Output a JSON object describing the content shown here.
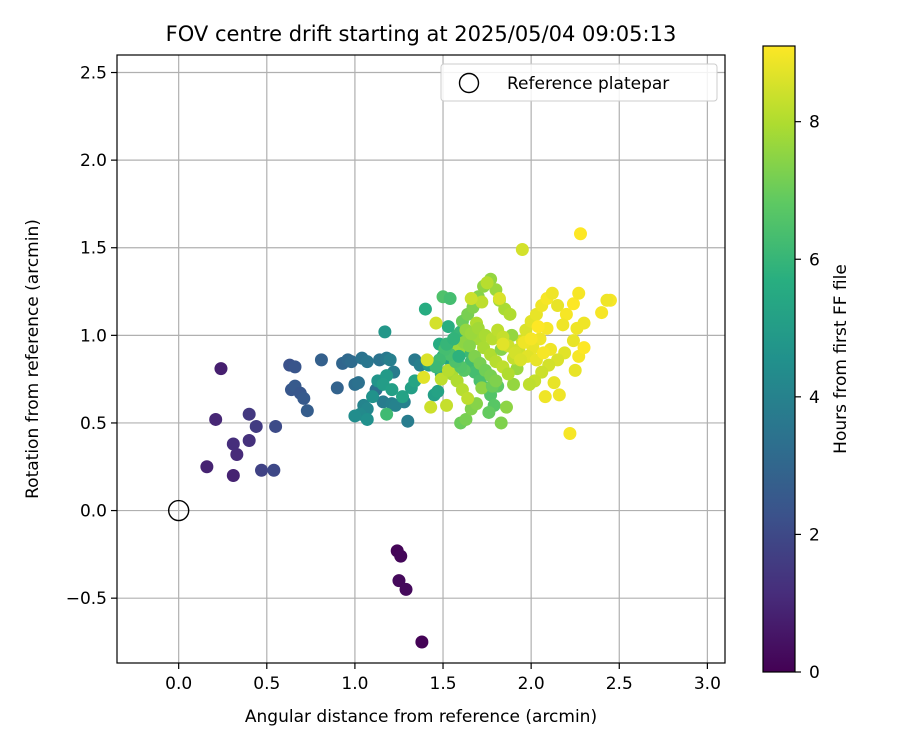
{
  "chart_data": {
    "type": "scatter",
    "title": "FOV centre drift starting at 2025/05/04 09:05:13",
    "xlabel": "Angular distance from reference (arcmin)",
    "ylabel": "Rotation from reference (arcmin)",
    "xlim": [
      -0.35,
      3.1
    ],
    "ylim": [
      -0.87,
      2.6
    ],
    "xticks": [
      {
        "value": 0.0,
        "label": "0.0"
      },
      {
        "value": 0.5,
        "label": "0.5"
      },
      {
        "value": 1.0,
        "label": "1.0"
      },
      {
        "value": 1.5,
        "label": "1.5"
      },
      {
        "value": 2.0,
        "label": "2.0"
      },
      {
        "value": 2.5,
        "label": "2.5"
      },
      {
        "value": 3.0,
        "label": "3.0"
      }
    ],
    "yticks": [
      {
        "value": -0.5,
        "label": "−0.5"
      },
      {
        "value": 0.0,
        "label": "0.0"
      },
      {
        "value": 0.5,
        "label": "0.5"
      },
      {
        "value": 1.0,
        "label": "1.0"
      },
      {
        "value": 1.5,
        "label": "1.5"
      },
      {
        "value": 2.0,
        "label": "2.0"
      },
      {
        "value": 2.5,
        "label": "2.5"
      }
    ],
    "grid": true,
    "legend": {
      "position": "top-right",
      "entries": [
        "Reference platepar"
      ]
    },
    "reference_point": {
      "x": 0.0,
      "y": 0.0,
      "label": "Reference platepar"
    },
    "colorbar": {
      "label": "Hours from first FF file",
      "min": 0,
      "max": 9.1,
      "colormap": "viridis",
      "ticks": [
        {
          "value": 0,
          "label": "0"
        },
        {
          "value": 2,
          "label": "2"
        },
        {
          "value": 4,
          "label": "4"
        },
        {
          "value": 6,
          "label": "6"
        },
        {
          "value": 8,
          "label": "8"
        }
      ]
    },
    "series": [
      {
        "columns": [
          "x",
          "y",
          "hours"
        ],
        "points": [
          [
            1.24,
            -0.23,
            0.1
          ],
          [
            1.26,
            -0.26,
            0.15
          ],
          [
            1.25,
            -0.4,
            0.2
          ],
          [
            1.29,
            -0.45,
            0.25
          ],
          [
            1.38,
            -0.75,
            0.05
          ],
          [
            0.24,
            0.81,
            0.8
          ],
          [
            0.16,
            0.25,
            0.9
          ],
          [
            0.31,
            0.2,
            0.9
          ],
          [
            0.21,
            0.52,
            1.0
          ],
          [
            0.33,
            0.32,
            1.1
          ],
          [
            0.31,
            0.38,
            1.2
          ],
          [
            0.4,
            0.4,
            1.3
          ],
          [
            0.4,
            0.55,
            1.5
          ],
          [
            0.44,
            0.48,
            1.6
          ],
          [
            0.47,
            0.23,
            1.8
          ],
          [
            0.54,
            0.23,
            2.0
          ],
          [
            0.55,
            0.48,
            2.1
          ],
          [
            0.63,
            0.83,
            2.3
          ],
          [
            0.66,
            0.82,
            2.4
          ],
          [
            0.64,
            0.69,
            2.5
          ],
          [
            0.66,
            0.71,
            2.6
          ],
          [
            0.69,
            0.67,
            2.5
          ],
          [
            0.71,
            0.64,
            2.6
          ],
          [
            0.73,
            0.57,
            2.7
          ],
          [
            0.81,
            0.86,
            2.8
          ],
          [
            0.9,
            0.7,
            2.9
          ],
          [
            0.93,
            0.84,
            3.0
          ],
          [
            0.96,
            0.86,
            3.1
          ],
          [
            0.98,
            0.85,
            3.2
          ],
          [
            1.0,
            0.72,
            3.3
          ],
          [
            1.02,
            0.73,
            3.4
          ],
          [
            1.04,
            0.87,
            3.5
          ],
          [
            1.07,
            0.85,
            3.6
          ],
          [
            1.12,
            0.69,
            3.4
          ],
          [
            1.14,
            0.86,
            3.5
          ],
          [
            1.18,
            0.87,
            3.7
          ],
          [
            1.2,
            0.86,
            3.9
          ],
          [
            1.16,
            0.62,
            3.8
          ],
          [
            1.21,
            0.61,
            3.9
          ],
          [
            1.23,
            0.6,
            4.0
          ],
          [
            1.22,
            0.79,
            3.8
          ],
          [
            1.28,
            0.62,
            4.0
          ],
          [
            1.3,
            0.51,
            3.8
          ],
          [
            1.34,
            0.86,
            3.7
          ],
          [
            1.37,
            0.83,
            3.9
          ],
          [
            1.05,
            0.6,
            4.1
          ],
          [
            1.07,
            0.58,
            4.2
          ],
          [
            1.03,
            0.55,
            4.3
          ],
          [
            1.0,
            0.54,
            4.4
          ],
          [
            1.07,
            0.52,
            4.5
          ],
          [
            1.1,
            0.65,
            4.6
          ],
          [
            1.13,
            0.74,
            4.7
          ],
          [
            1.17,
            1.02,
            4.8
          ],
          [
            1.18,
            0.77,
            4.9
          ],
          [
            1.16,
            0.72,
            5.0
          ],
          [
            1.21,
            0.69,
            5.1
          ],
          [
            1.27,
            0.65,
            5.2
          ],
          [
            1.32,
            0.7,
            5.1
          ],
          [
            1.34,
            0.74,
            5.3
          ],
          [
            1.42,
            0.83,
            5.0
          ],
          [
            1.45,
            0.66,
            5.1
          ],
          [
            1.47,
            0.68,
            5.2
          ],
          [
            1.49,
            0.78,
            5.3
          ],
          [
            1.5,
            0.88,
            5.4
          ],
          [
            1.52,
            0.87,
            5.5
          ],
          [
            1.55,
            0.86,
            5.3
          ],
          [
            1.57,
            0.84,
            5.4
          ],
          [
            1.48,
            0.95,
            5.6
          ],
          [
            1.53,
            1.05,
            5.7
          ],
          [
            1.55,
            0.95,
            5.8
          ],
          [
            1.58,
            1.0,
            5.9
          ],
          [
            1.6,
            1.02,
            6.0
          ],
          [
            1.62,
            0.91,
            6.1
          ],
          [
            1.66,
            0.85,
            6.2
          ],
          [
            1.68,
            0.79,
            6.3
          ],
          [
            1.71,
            0.74,
            6.4
          ],
          [
            1.74,
            0.7,
            6.5
          ],
          [
            1.77,
            0.66,
            6.6
          ],
          [
            1.79,
            0.6,
            6.7
          ],
          [
            1.81,
            0.71,
            6.8
          ],
          [
            1.4,
            1.15,
            5.6
          ],
          [
            1.5,
            1.22,
            6.5
          ],
          [
            1.54,
            1.21,
            6.3
          ],
          [
            1.18,
            0.55,
            6.2
          ],
          [
            1.6,
            0.5,
            7.0
          ],
          [
            1.63,
            0.52,
            7.2
          ],
          [
            1.66,
            0.58,
            7.3
          ],
          [
            1.69,
            0.61,
            7.4
          ],
          [
            1.72,
            0.7,
            7.5
          ],
          [
            1.76,
            0.56,
            6.9
          ],
          [
            1.78,
            0.71,
            7.0
          ],
          [
            1.83,
            0.5,
            7.3
          ],
          [
            1.86,
            0.59,
            7.5
          ],
          [
            1.9,
            0.72,
            7.6
          ],
          [
            1.92,
            0.81,
            7.7
          ],
          [
            1.61,
            1.08,
            7.0
          ],
          [
            1.64,
            1.12,
            7.2
          ],
          [
            1.67,
            1.16,
            7.3
          ],
          [
            1.7,
            1.22,
            7.4
          ],
          [
            1.73,
            1.28,
            7.5
          ],
          [
            1.77,
            1.32,
            7.6
          ],
          [
            1.8,
            1.26,
            7.7
          ],
          [
            1.82,
            1.2,
            7.8
          ],
          [
            1.85,
            1.15,
            7.9
          ],
          [
            1.88,
            1.12,
            8.0
          ],
          [
            1.75,
            1.3,
            8.1
          ],
          [
            1.72,
            1.19,
            8.2
          ],
          [
            1.69,
            1.07,
            8.0
          ],
          [
            1.7,
            0.98,
            7.8
          ],
          [
            1.73,
            0.93,
            7.9
          ],
          [
            1.77,
            0.89,
            8.0
          ],
          [
            1.8,
            0.85,
            8.1
          ],
          [
            1.84,
            0.82,
            8.2
          ],
          [
            1.87,
            0.78,
            8.0
          ],
          [
            1.9,
            0.87,
            8.3
          ],
          [
            1.93,
            0.92,
            8.4
          ],
          [
            1.95,
            0.97,
            8.5
          ],
          [
            1.97,
            1.03,
            8.6
          ],
          [
            2.0,
            1.08,
            8.7
          ],
          [
            2.03,
            1.12,
            8.8
          ],
          [
            2.06,
            1.17,
            8.9
          ],
          [
            2.09,
            1.21,
            9.0
          ],
          [
            2.12,
            1.24,
            8.9
          ],
          [
            2.15,
            1.17,
            8.8
          ],
          [
            2.2,
            1.12,
            9.0
          ],
          [
            2.24,
            1.18,
            9.1
          ],
          [
            2.27,
            1.24,
            9.0
          ],
          [
            2.3,
            1.07,
            8.9
          ],
          [
            2.24,
            0.97,
            8.8
          ],
          [
            2.19,
            0.9,
            8.7
          ],
          [
            2.15,
            0.86,
            8.6
          ],
          [
            2.1,
            0.83,
            8.5
          ],
          [
            2.06,
            0.79,
            8.4
          ],
          [
            2.02,
            0.74,
            8.3
          ],
          [
            1.99,
            0.72,
            8.2
          ],
          [
            1.95,
            1.49,
            8.5
          ],
          [
            2.28,
            1.58,
            9.1
          ],
          [
            2.45,
            1.2,
            9.0
          ],
          [
            2.43,
            1.2,
            8.9
          ],
          [
            2.4,
            1.13,
            9.0
          ],
          [
            2.08,
            0.65,
            8.9
          ],
          [
            2.13,
            0.73,
            8.8
          ],
          [
            2.16,
            0.66,
            8.9
          ],
          [
            2.22,
            0.44,
            9.0
          ],
          [
            2.25,
            0.8,
            8.8
          ],
          [
            2.27,
            0.88,
            9.0
          ],
          [
            2.3,
            0.93,
            9.1
          ],
          [
            2.26,
            1.04,
            8.9
          ],
          [
            2.18,
            1.06,
            8.9
          ],
          [
            2.09,
            1.04,
            9.0
          ],
          [
            2.05,
            0.98,
            8.9
          ],
          [
            2.01,
            0.93,
            8.8
          ],
          [
            1.98,
            0.88,
            8.7
          ],
          [
            2.03,
            0.86,
            8.8
          ],
          [
            2.11,
            0.92,
            8.9
          ],
          [
            1.55,
            0.78,
            7.9
          ],
          [
            1.58,
            0.74,
            8.0
          ],
          [
            1.61,
            0.69,
            8.1
          ],
          [
            1.64,
            0.64,
            8.2
          ],
          [
            1.52,
            0.6,
            8.3
          ],
          [
            1.43,
            0.59,
            8.4
          ],
          [
            1.49,
            0.75,
            8.2
          ],
          [
            1.53,
            0.8,
            8.1
          ],
          [
            1.56,
            0.89,
            7.8
          ],
          [
            1.59,
            0.92,
            7.7
          ],
          [
            1.62,
            0.96,
            7.5
          ],
          [
            1.65,
            0.94,
            7.4
          ],
          [
            1.68,
            0.88,
            7.3
          ],
          [
            1.71,
            0.84,
            7.2
          ],
          [
            1.74,
            0.8,
            7.1
          ],
          [
            1.77,
            0.77,
            7.2
          ],
          [
            1.8,
            0.74,
            7.3
          ],
          [
            1.83,
            0.92,
            7.4
          ],
          [
            1.86,
            0.96,
            7.5
          ],
          [
            1.89,
            1.0,
            7.6
          ],
          [
            1.62,
            0.8,
            6.7
          ],
          [
            1.6,
            0.82,
            6.6
          ],
          [
            1.57,
            0.85,
            6.5
          ],
          [
            1.54,
            0.89,
            6.4
          ],
          [
            1.51,
            0.92,
            6.3
          ],
          [
            1.48,
            0.86,
            6.2
          ],
          [
            1.46,
            0.82,
            6.1
          ],
          [
            1.52,
            0.95,
            6.0
          ],
          [
            1.56,
            0.98,
            5.9
          ],
          [
            1.59,
            0.88,
            5.8
          ],
          [
            1.63,
            1.03,
            7.6
          ],
          [
            1.66,
            1.01,
            7.7
          ],
          [
            1.7,
            1.04,
            7.8
          ],
          [
            1.74,
            1.0,
            7.9
          ],
          [
            1.78,
            0.98,
            8.1
          ],
          [
            1.81,
            1.03,
            8.2
          ],
          [
            1.84,
            0.99,
            8.3
          ],
          [
            1.87,
            0.94,
            8.4
          ],
          [
            1.91,
            0.9,
            8.5
          ],
          [
            1.94,
            0.86,
            8.6
          ],
          [
            1.39,
            0.76,
            8.7
          ],
          [
            1.41,
            0.86,
            8.6
          ],
          [
            1.46,
            1.07,
            8.5
          ],
          [
            1.66,
            1.21,
            8.4
          ],
          [
            1.82,
            1.21,
            8.6
          ],
          [
            1.84,
            0.95,
            8.7
          ],
          [
            1.96,
            0.96,
            8.9
          ],
          [
            2.0,
            0.98,
            9.0
          ],
          [
            2.04,
            1.05,
            9.1
          ],
          [
            2.07,
            0.9,
            9.0
          ]
        ]
      }
    ]
  }
}
